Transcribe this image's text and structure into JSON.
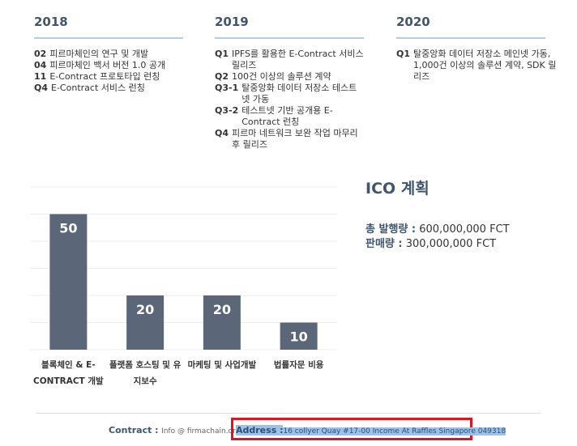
{
  "timeline": [
    {
      "year": "2018",
      "items": [
        {
          "label": "02",
          "text": "피르마체인의 연구 및 개발"
        },
        {
          "label": "04",
          "text": "피르마체인 백서 버전 1.0 공개"
        },
        {
          "label": "11",
          "text": "E-Contract 프로토타입 런칭"
        },
        {
          "label": "Q4",
          "text": "E-Contract 서비스 런칭"
        }
      ]
    },
    {
      "year": "2019",
      "items": [
        {
          "label": "Q1",
          "text": "IPFS를 활용한 E-Contract 서비스 릴리즈"
        },
        {
          "label": "Q2",
          "text": "100건 이상의 솔루션 계약"
        },
        {
          "label": "Q3-1",
          "text": "탈중앙화 데이터 저장소 테스트넷 가동"
        },
        {
          "label": "Q3-2",
          "text": "테스트넷 기반 공개용 E-Contract 런칭"
        },
        {
          "label": "Q4",
          "text": "피르마 네트워크 보완 작업 마무리 후 릴리즈"
        }
      ]
    },
    {
      "year": "2020",
      "items": [
        {
          "label": "Q1",
          "text": "탈중앙화 데이터 저장소 메인넷 가동, 1,000건 이상의 솔루션 계약, SDK 릴리즈"
        }
      ]
    }
  ],
  "ico": {
    "title": "ICO 계획",
    "lines": [
      {
        "label": "총 발행량 :",
        "value": "600,000,000 FCT"
      },
      {
        "label": "판매량 :",
        "value": "300,000,000 FCT"
      }
    ]
  },
  "chart_data": {
    "type": "bar",
    "categories": [
      "블록체인 & E-CONTRACT 개발",
      "플랫폼 호스팅 및 유지보수",
      "마케팅 및 사업개발",
      "법률자문 비용"
    ],
    "values": [
      50,
      20,
      20,
      10
    ],
    "color": "#5b6779",
    "ylim": [
      0,
      60
    ],
    "yticks": [
      0,
      10,
      20,
      30,
      40,
      50,
      60
    ],
    "grid": true
  },
  "footer": {
    "contract_label": "Contract :",
    "contract_value": "Info @ firmachain.org",
    "address_label": "Address :",
    "address_value": "16 collyer Quay #17-00 Income At Raffles Singapore 049318"
  }
}
